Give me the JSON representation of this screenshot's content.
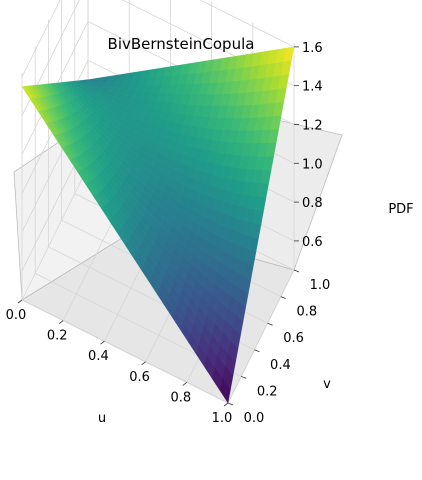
{
  "chart_data": {
    "type": "surface3d",
    "title": "BivBernsteinCopula",
    "xlabel": "u",
    "ylabel": "v",
    "zlabel": "PDF",
    "xlim": [
      0.0,
      1.0
    ],
    "ylim": [
      0.0,
      1.0
    ],
    "zlim": [
      0.45,
      1.62
    ],
    "xticks": [
      "0.0",
      "0.2",
      "0.4",
      "0.6",
      "0.8",
      "1.0"
    ],
    "yticks": [
      "0.0",
      "0.2",
      "0.4",
      "0.6",
      "0.8",
      "1.0"
    ],
    "zticks": [
      "0.6",
      "0.8",
      "1.0",
      "1.2",
      "1.4",
      "1.6"
    ],
    "colormap": "viridis",
    "grid": true,
    "corner_values": [
      {
        "u": 0.0,
        "v": 0.0,
        "pdf": 1.55
      },
      {
        "u": 1.0,
        "v": 0.0,
        "pdf": 0.45
      },
      {
        "u": 0.0,
        "v": 1.0,
        "pdf": 0.9
      },
      {
        "u": 1.0,
        "v": 1.0,
        "pdf": 1.6
      },
      {
        "u": 0.5,
        "v": 0.5,
        "pdf": 1.0
      }
    ]
  }
}
